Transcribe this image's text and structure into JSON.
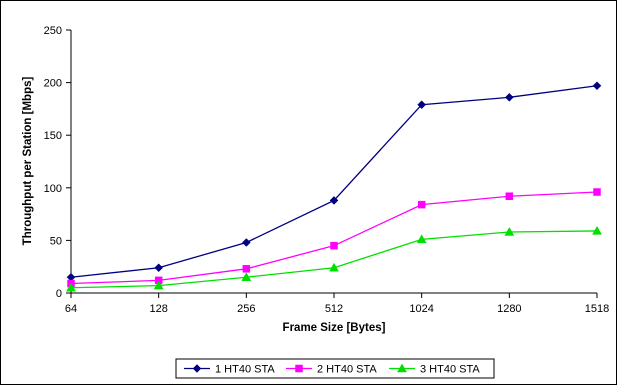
{
  "chart_data": {
    "type": "line",
    "title": "",
    "xlabel": "Frame Size [Bytes]",
    "ylabel": "Throughput per Station [Mbps]",
    "categories": [
      "64",
      "128",
      "256",
      "512",
      "1024",
      "1280",
      "1518"
    ],
    "ylim": [
      0,
      250
    ],
    "yticks": [
      0,
      50,
      100,
      150,
      200,
      250
    ],
    "grid": false,
    "legend_position": "bottom",
    "series": [
      {
        "name": "1 HT40 STA",
        "color": "#000080",
        "marker": "diamond",
        "values": [
          15,
          24,
          48,
          88,
          179,
          186,
          197
        ]
      },
      {
        "name": "2 HT40 STA",
        "color": "#ff00ff",
        "marker": "square",
        "values": [
          9,
          12,
          23,
          45,
          84,
          92,
          96
        ]
      },
      {
        "name": "3 HT40 STA",
        "color": "#00e000",
        "marker": "triangle",
        "values": [
          5,
          7,
          15,
          24,
          51,
          58,
          59
        ]
      }
    ]
  }
}
